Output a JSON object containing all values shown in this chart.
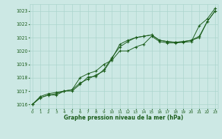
{
  "bg_color": "#cce8e4",
  "grid_color": "#aad4cc",
  "line_color": "#1a5c1a",
  "title": "Graphe pression niveau de la mer (hPa)",
  "ylabel_ticks": [
    1016,
    1017,
    1018,
    1019,
    1020,
    1021,
    1022,
    1023
  ],
  "xlabel_ticks": [
    0,
    1,
    2,
    3,
    4,
    5,
    6,
    7,
    8,
    9,
    10,
    11,
    12,
    13,
    14,
    15,
    16,
    17,
    18,
    19,
    20,
    21,
    22,
    23
  ],
  "ylim": [
    1015.7,
    1023.5
  ],
  "xlim": [
    -0.3,
    23.3
  ],
  "line1_x": [
    0,
    1,
    2,
    3,
    4,
    5,
    6,
    7,
    8,
    9,
    10,
    11,
    12,
    13,
    14,
    15,
    16,
    17,
    18,
    19,
    20,
    21,
    22,
    23
  ],
  "line1_y": [
    1016.0,
    1016.6,
    1016.8,
    1016.9,
    1017.0,
    1017.1,
    1017.6,
    1017.9,
    1018.2,
    1018.5,
    1019.4,
    1020.5,
    1020.8,
    1021.0,
    1021.1,
    1021.2,
    1020.8,
    1020.7,
    1020.65,
    1020.7,
    1020.8,
    1021.0,
    1022.2,
    1023.0
  ],
  "line2_x": [
    0,
    1,
    2,
    3,
    4,
    5,
    6,
    7,
    8,
    9,
    10,
    11,
    12,
    13,
    14,
    15,
    16,
    17,
    18,
    19,
    20,
    21,
    22,
    23
  ],
  "line2_y": [
    1016.0,
    1016.5,
    1016.7,
    1016.8,
    1017.0,
    1017.1,
    1018.0,
    1018.3,
    1018.5,
    1019.0,
    1019.3,
    1020.0,
    1020.0,
    1020.3,
    1020.5,
    1021.1,
    1020.7,
    1020.6,
    1020.6,
    1020.65,
    1020.7,
    1021.9,
    1022.4,
    1023.2
  ],
  "line3_x": [
    0,
    1,
    2,
    3,
    4,
    5,
    6,
    7,
    8,
    9,
    10,
    11,
    12,
    13,
    14,
    15,
    16,
    17,
    18,
    19,
    20,
    21,
    22,
    23
  ],
  "line3_y": [
    1016.0,
    1016.5,
    1016.7,
    1016.7,
    1017.0,
    1017.0,
    1017.5,
    1018.05,
    1018.1,
    1018.6,
    1019.5,
    1020.3,
    1020.7,
    1021.0,
    1021.1,
    1021.2,
    1020.8,
    1020.7,
    1020.65,
    1020.7,
    1020.8,
    1021.1,
    1022.2,
    1023.0
  ]
}
